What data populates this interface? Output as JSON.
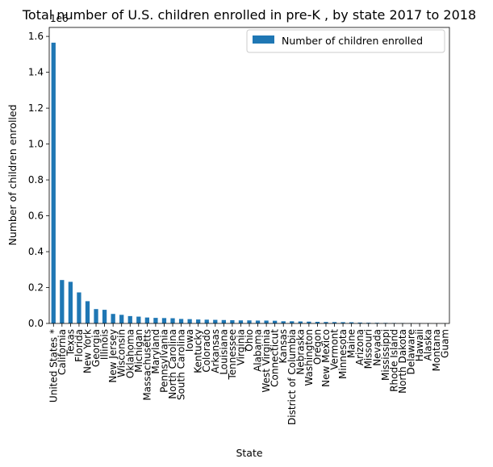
{
  "chart_data": {
    "type": "bar",
    "title": "Total number of U.S. children enrolled in pre-K , by state 2017 to 2018",
    "xlabel": "State",
    "ylabel": "Number of children enrolled",
    "offset_label": "1e6",
    "ylim": [
      0,
      1650000
    ],
    "yticks": [
      0,
      200000,
      400000,
      600000,
      800000,
      1000000,
      1200000,
      1400000,
      1600000
    ],
    "ytick_labels": [
      "0.0",
      "0.2",
      "0.4",
      "0.6",
      "0.8",
      "1.0",
      "1.2",
      "1.4",
      "1.6"
    ],
    "grid": false,
    "legend_position": "top-right",
    "color": "#1f77b4",
    "categories": [
      "United States *",
      "California",
      "Texas",
      "Florida",
      "New York",
      "Georgia",
      "Illinois",
      "New Jersey",
      "Wisconsin",
      "Oklahoma",
      "Michigan",
      "Massachusetts",
      "Maryland",
      "Pennsylvania",
      "North Carolina",
      "South Carolina",
      "Iowa",
      "Kentucky",
      "Colorado",
      "Arkansas",
      "Louisiana",
      "Tennessee",
      "Virginia",
      "Ohio",
      "Alabama",
      "West Virginia",
      "Connecticut",
      "Kansas",
      "District of Columbia",
      "Nebraska",
      "Washington",
      "Oregon",
      "New Mexico",
      "Vermont",
      "Minnesota",
      "Maine",
      "Arizona",
      "Missouri",
      "Nevada",
      "Mississippi",
      "Rhode Island",
      "North Dakota",
      "Delaware",
      "Hawaii",
      "Alaska",
      "Montana",
      "Guam"
    ],
    "series": [
      {
        "name": "Number of children enrolled",
        "values": [
          1565000,
          242000,
          232000,
          173000,
          124000,
          80000,
          76000,
          53000,
          48000,
          41000,
          38000,
          33000,
          31000,
          30000,
          29000,
          25000,
          24000,
          22000,
          21000,
          20000,
          19000,
          18000,
          17000,
          17000,
          16000,
          16000,
          15000,
          12000,
          12000,
          11000,
          10000,
          9000,
          8000,
          7500,
          7000,
          6500,
          5000,
          4000,
          3500,
          3000,
          2500,
          2000,
          1000,
          800,
          700,
          500,
          300
        ]
      }
    ]
  }
}
